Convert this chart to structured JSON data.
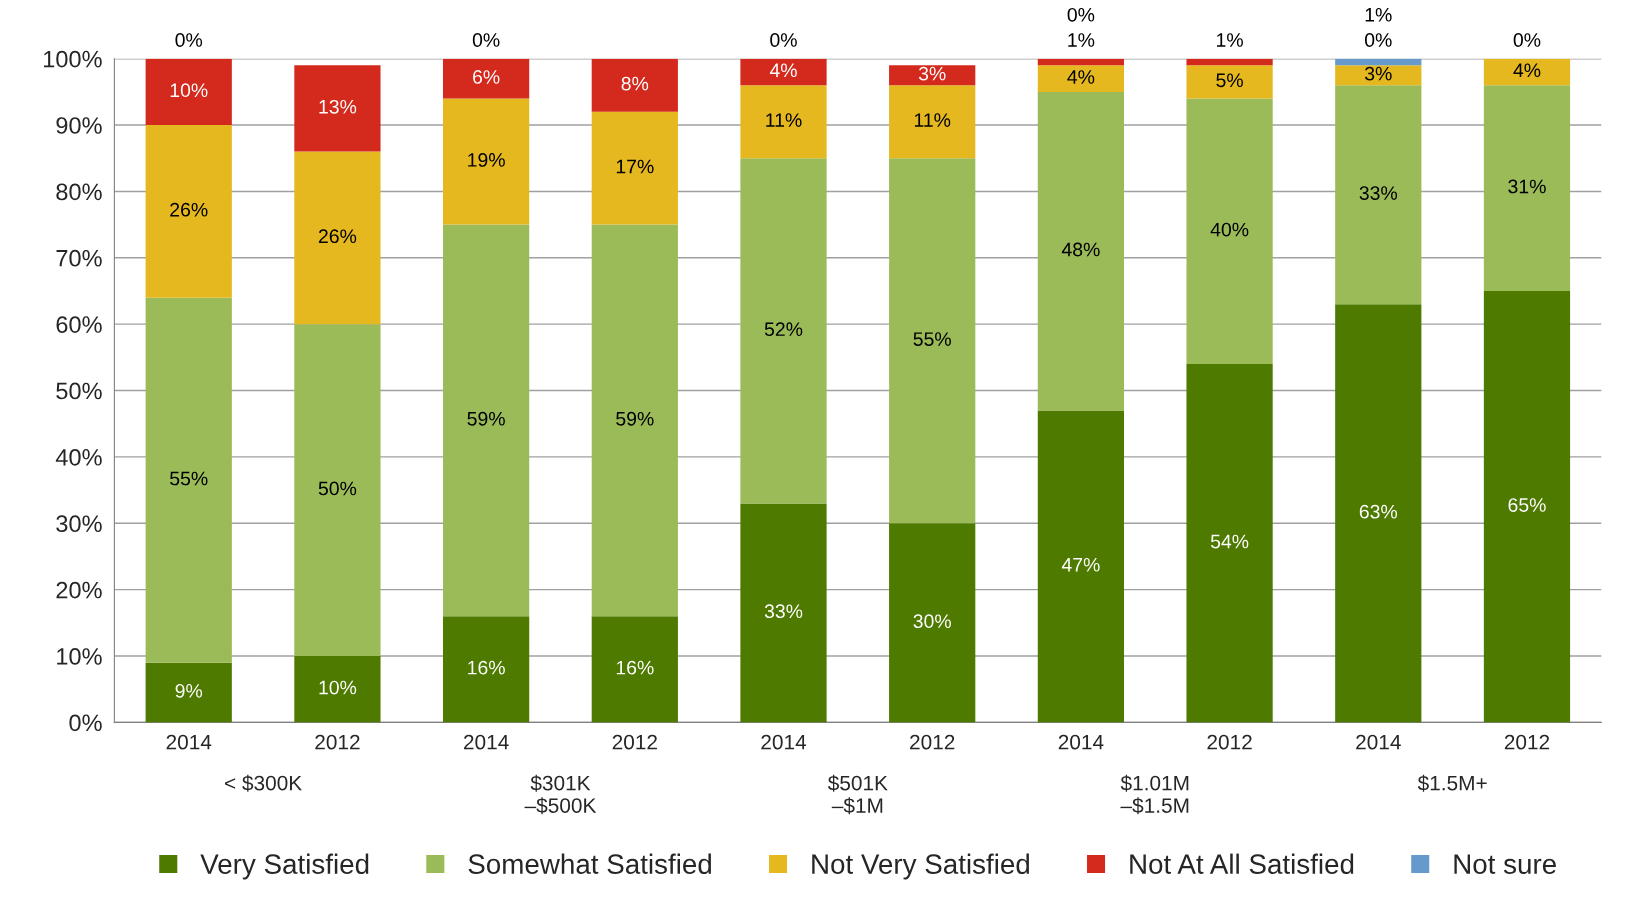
{
  "chart_data": {
    "type": "bar",
    "stacked": true,
    "categories": [
      "2014",
      "2012",
      "2014",
      "2012",
      "2014",
      "2012",
      "2014",
      "2012",
      "2014",
      "2012"
    ],
    "series": [
      {
        "name": "Very Satisfied",
        "color": "#4e7a00",
        "values": [
          9,
          10,
          16,
          16,
          33,
          30,
          47,
          54,
          63,
          65
        ],
        "value_labels": [
          "9%",
          "10%",
          "16%",
          "16%",
          "33%",
          "30%",
          "47%",
          "54%",
          "63%",
          "65%"
        ]
      },
      {
        "name": "Somewhat Satisfied",
        "color": "#9bbb59",
        "values": [
          55,
          50,
          59,
          59,
          52,
          55,
          48,
          40,
          33,
          31
        ],
        "value_labels": [
          "55%",
          "50%",
          "59%",
          "59%",
          "52%",
          "55%",
          "48%",
          "40%",
          "33%",
          "31%"
        ]
      },
      {
        "name": "Not Very Satisfied",
        "color": "#e6b820",
        "values": [
          26,
          26,
          19,
          17,
          11,
          11,
          4,
          5,
          3,
          4
        ],
        "value_labels": [
          "26%",
          "26%",
          "19%",
          "17%",
          "11%",
          "11%",
          "4%",
          "5%",
          "3%",
          "4%"
        ]
      },
      {
        "name": "Not At All Satisfied",
        "color": "#d42a1e",
        "values": [
          10,
          13,
          6,
          8,
          4,
          3,
          1,
          1,
          0,
          0
        ],
        "value_labels": [
          "10%",
          "13%",
          "6%",
          "8%",
          "4%",
          "3%",
          "1%",
          "1%",
          "0%",
          null
        ]
      },
      {
        "name": "Not sure",
        "color": "#6699cc",
        "values": [
          0,
          0,
          0,
          0,
          0,
          0,
          0,
          0,
          1,
          0
        ],
        "value_labels": [
          "0%",
          null,
          "0%",
          null,
          "0%",
          null,
          "0%",
          null,
          "1%",
          "0%"
        ]
      }
    ],
    "ylim": [
      0,
      100
    ],
    "yticks": [
      {
        "value": 0,
        "label": "0%"
      },
      {
        "value": 10,
        "label": "10%"
      },
      {
        "value": 20,
        "label": "20%"
      },
      {
        "value": 30,
        "label": "30%"
      },
      {
        "value": 40,
        "label": "40%"
      },
      {
        "value": 50,
        "label": "50%"
      },
      {
        "value": 60,
        "label": "60%"
      },
      {
        "value": 70,
        "label": "70%"
      },
      {
        "value": 80,
        "label": "80%"
      },
      {
        "value": 90,
        "label": "90%"
      },
      {
        "value": 100,
        "label": "100%"
      }
    ],
    "annotations": [
      "< $300K",
      "$301K\n–$500K",
      "$501K\n–$1M",
      "$1.01M\n–$1.5M",
      "$1.5M+"
    ],
    "grid": "y",
    "legend": "bottom"
  }
}
